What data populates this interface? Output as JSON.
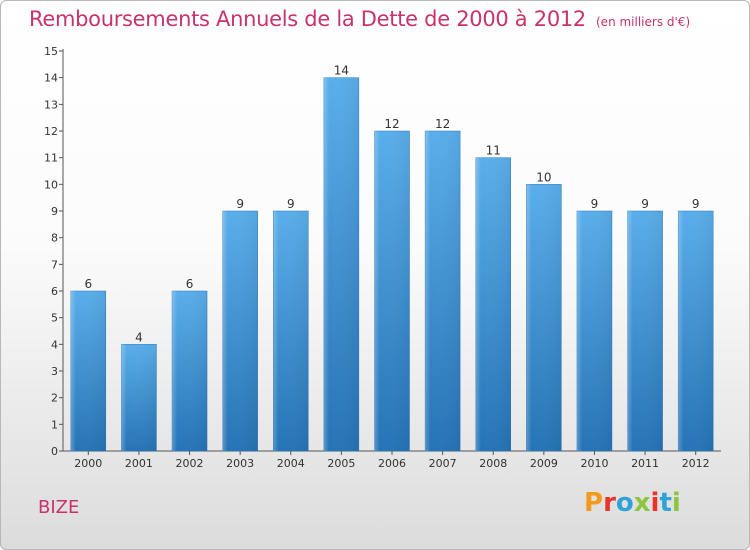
{
  "chart_data": {
    "type": "bar",
    "title": "Remboursements Annuels de la Dette de 2000 à 2012",
    "subtitle": "(en milliers d'€)",
    "categories": [
      "2000",
      "2001",
      "2002",
      "2003",
      "2004",
      "2005",
      "2006",
      "2007",
      "2008",
      "2009",
      "2010",
      "2011",
      "2012"
    ],
    "values": [
      6,
      4,
      6,
      9,
      9,
      14,
      12,
      12,
      11,
      10,
      9,
      9,
      9
    ],
    "value_labels": [
      "6",
      "4",
      "6",
      "9",
      "9",
      "14",
      "12",
      "12",
      "11",
      "10",
      "9",
      "9",
      "9"
    ],
    "yticks": [
      "0",
      "1",
      "2",
      "3",
      "4",
      "5",
      "6",
      "7",
      "8",
      "9",
      "10",
      "11",
      "12",
      "13",
      "14",
      "15"
    ],
    "ylim": [
      0,
      15
    ],
    "xlabel": "",
    "ylabel": "",
    "grid": false,
    "bar_color": "#3a8fd6"
  },
  "footer": {
    "place": "BIZE",
    "logo": "Proxiti"
  },
  "colors": {
    "title": "#c8336b",
    "logo_letters": [
      "#f39a1e",
      "#e8342a",
      "#2fa3d8",
      "#8cc63f",
      "#e8342a",
      "#2fa3d8",
      "#8cc63f"
    ]
  }
}
